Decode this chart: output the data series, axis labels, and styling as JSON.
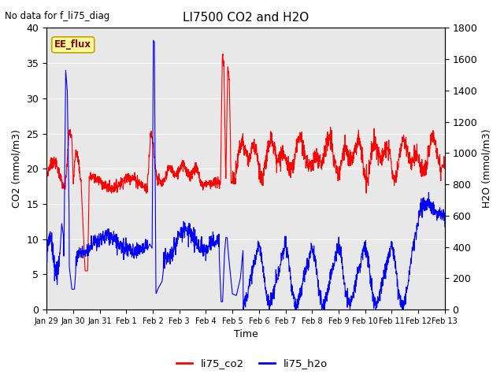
{
  "title": "LI7500 CO2 and H2O",
  "top_left_text": "No data for f_li75_diag",
  "xlabel": "Time",
  "ylabel_left": "CO2 (mmol/m3)",
  "ylabel_right": "H2O (mmol/m3)",
  "ylim_left": [
    0,
    40
  ],
  "ylim_right": [
    0,
    1800
  ],
  "co2_color": "red",
  "h2o_color": "blue",
  "background_color": "#e8e8e8",
  "annotation_text": "EE_flux",
  "annotation_facecolor": "#ffffa0",
  "annotation_edgecolor": "#c8a000",
  "annotation_textcolor": "#8b0000",
  "x_tick_labels": [
    "Jan 29",
    "Jan 30",
    "Jan 31",
    "Feb 1",
    "Feb 2",
    "Feb 3",
    "Feb 4",
    "Feb 5",
    "Feb 6",
    "Feb 7",
    "Feb 8",
    "Feb 9",
    "Feb 10",
    "Feb 11",
    "Feb 12",
    "Feb 13"
  ],
  "n_points": 2000
}
